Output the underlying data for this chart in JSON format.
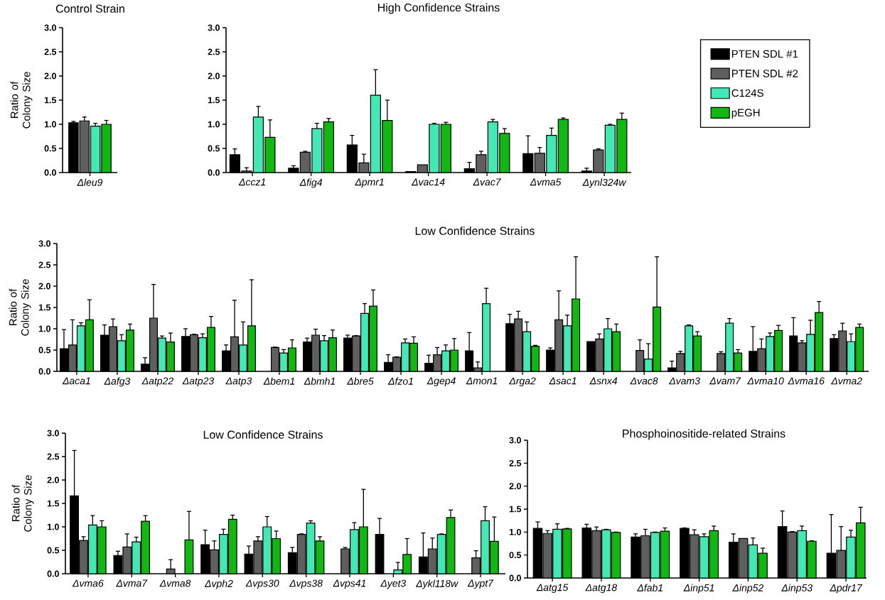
{
  "chart_data": [
    {
      "type": "bar",
      "title": "Control Strain",
      "ylabel": "Ratio of Colony Size",
      "categories": [
        "Δleu9"
      ],
      "ylim": [
        0,
        3
      ],
      "yticks": [
        {
          "value": 0,
          "label": "0.0"
        },
        {
          "value": 0.5,
          "label": "0.5"
        },
        {
          "value": 1,
          "label": "1.0"
        },
        {
          "value": 1.5,
          "label": "1.5"
        },
        {
          "value": 2,
          "label": "2.0"
        },
        {
          "value": 2.5,
          "label": "2.5"
        },
        {
          "value": 3,
          "label": "3.0"
        }
      ],
      "series": [
        {
          "color": "#000000",
          "values": [
            1.03
          ],
          "errors": [
            [
              1.03,
              1.06
            ]
          ]
        },
        {
          "color": "#5f5f5f",
          "values": [
            1.07
          ],
          "errors": [
            [
              1.07,
              1.15
            ]
          ]
        },
        {
          "color": "#44e8b4",
          "values": [
            0.96
          ],
          "errors": [
            [
              0.96,
              1.02
            ]
          ]
        },
        {
          "color": "#12b812",
          "values": [
            1.0
          ],
          "errors": [
            [
              1.0,
              1.08
            ]
          ]
        }
      ]
    },
    {
      "type": "bar",
      "title": "High Confidence Strains",
      "categories": [
        "Δccz1",
        "Δfig4",
        "Δpmr1",
        "Δvac14",
        "Δvac7",
        "Δvma5",
        "Δynl324w"
      ],
      "ylim": [
        0,
        3
      ],
      "yticks": [
        {
          "value": 0,
          "label": "0.0"
        },
        {
          "value": 0.5,
          "label": "0.5"
        },
        {
          "value": 1,
          "label": "1.0"
        },
        {
          "value": 1.5,
          "label": "1.5"
        },
        {
          "value": 2,
          "label": "2.0"
        },
        {
          "value": 2.5,
          "label": "2.5"
        },
        {
          "value": 3,
          "label": "3.0"
        }
      ],
      "legend": "right",
      "series": [
        {
          "name": "PTEN SDL #1",
          "color": "#000000",
          "values": [
            0.37,
            0.09,
            0.57,
            0.02,
            0.08,
            0.39,
            0.03
          ],
          "errors": [
            [
              0.37,
              0.49
            ],
            [
              0.09,
              0.14
            ],
            [
              0.57,
              0.77
            ],
            null,
            [
              0.08,
              0.21
            ],
            [
              0.39,
              0.76
            ],
            [
              0.03,
              0.09
            ]
          ]
        },
        {
          "name": "PTEN SDL #2",
          "color": "#5f5f5f",
          "values": [
            0.03,
            0.42,
            0.2,
            0.16,
            0.37,
            0.4,
            0.47
          ],
          "errors": [
            [
              0.03,
              0.1
            ],
            [
              0.42,
              0.44
            ],
            [
              0.2,
              0.38
            ],
            null,
            [
              0.37,
              0.44
            ],
            [
              0.4,
              0.52
            ],
            [
              0.47,
              0.49
            ]
          ]
        },
        {
          "name": "C124S",
          "color": "#44e8b4",
          "values": [
            1.15,
            0.91,
            1.6,
            1.0,
            1.05,
            0.77,
            0.98
          ],
          "errors": [
            [
              1.15,
              1.37
            ],
            [
              0.91,
              1.02
            ],
            [
              1.6,
              2.13
            ],
            [
              1.0,
              1.02
            ],
            [
              1.05,
              1.1
            ],
            [
              0.77,
              0.92
            ],
            [
              0.98,
              1.0
            ]
          ]
        },
        {
          "name": "pEGH",
          "color": "#12b812",
          "values": [
            0.73,
            1.05,
            1.08,
            1.0,
            0.81,
            1.1,
            1.1
          ],
          "errors": [
            [
              0.73,
              1.09
            ],
            [
              1.05,
              1.12
            ],
            [
              1.08,
              1.5
            ],
            [
              1.0,
              1.04
            ],
            [
              0.81,
              0.91
            ],
            [
              1.1,
              1.13
            ],
            [
              1.1,
              1.23
            ]
          ]
        }
      ]
    },
    {
      "type": "bar",
      "title": "Low Confidence Strains",
      "ylabel": "Ratio of Colony Size",
      "categories": [
        "Δaca1",
        "Δafg3",
        "Δatp22",
        "Δatp23",
        "Δatp3",
        "Δbem1",
        "Δbmh1",
        "Δbre5",
        "Δfzo1",
        "Δgep4",
        "Δmon1",
        "Δrga2",
        "Δsac1",
        "Δsnx4",
        "Δvac8",
        "Δvam3",
        "Δvam7",
        "Δvma10",
        "Δvma16",
        "Δvma2"
      ],
      "ylim": [
        0,
        3
      ],
      "yticks": [
        {
          "value": 0,
          "label": "0.0"
        },
        {
          "value": 0.5,
          "label": "0.5"
        },
        {
          "value": 1,
          "label": "1.0"
        },
        {
          "value": 1.5,
          "label": "1.5"
        },
        {
          "value": 2,
          "label": "2.0"
        },
        {
          "value": 2.5,
          "label": "2.5"
        },
        {
          "value": 3,
          "label": "3.0"
        }
      ],
      "series": [
        {
          "color": "#000000",
          "values": [
            0.53,
            0.85,
            0.17,
            0.82,
            0.48,
            null,
            0.69,
            0.78,
            0.21,
            0.19,
            0.48,
            1.12,
            0.5,
            0.7,
            null,
            0.08,
            null,
            0.47,
            0.83,
            0.77
          ],
          "errors": [
            [
              0.53,
              0.98
            ],
            [
              0.85,
              1.09
            ],
            [
              0.17,
              0.32
            ],
            [
              0.82,
              1.0
            ],
            [
              0.48,
              0.62
            ],
            null,
            [
              0.69,
              0.78
            ],
            [
              0.78,
              0.85
            ],
            [
              0.21,
              0.39
            ],
            [
              0.19,
              0.38
            ],
            [
              0.48,
              0.91
            ],
            [
              1.12,
              1.34
            ],
            [
              0.5,
              0.55
            ],
            null,
            null,
            [
              0.08,
              0.24
            ],
            null,
            [
              0.47,
              1.05
            ],
            [
              0.83,
              1.26
            ],
            [
              0.77,
              0.86
            ]
          ]
        },
        {
          "color": "#5f5f5f",
          "values": [
            0.62,
            1.05,
            1.25,
            0.86,
            0.81,
            0.56,
            0.85,
            0.83,
            0.33,
            0.39,
            0.08,
            1.23,
            1.21,
            0.76,
            0.49,
            0.42,
            0.42,
            0.53,
            0.67,
            0.95
          ],
          "errors": [
            [
              0.62,
              1.21
            ],
            [
              1.05,
              1.23
            ],
            [
              1.25,
              2.04
            ],
            [
              0.86,
              0.87
            ],
            [
              0.81,
              1.67
            ],
            [
              0.56,
              0.57
            ],
            [
              0.85,
              0.99
            ],
            [
              0.83,
              0.84
            ],
            [
              0.33,
              0.34
            ],
            [
              0.39,
              0.56
            ],
            [
              0.08,
              0.22
            ],
            [
              1.23,
              1.41
            ],
            [
              1.21,
              1.89
            ],
            [
              0.76,
              0.88
            ],
            [
              0.49,
              0.74
            ],
            [
              0.42,
              0.47
            ],
            [
              0.42,
              0.46
            ],
            [
              0.53,
              0.76
            ],
            [
              0.67,
              0.72
            ],
            [
              0.95,
              1.13
            ]
          ]
        },
        {
          "color": "#44e8b4",
          "values": [
            1.07,
            0.72,
            0.78,
            0.79,
            0.62,
            0.43,
            0.72,
            1.36,
            0.67,
            0.48,
            1.59,
            0.93,
            1.07,
            1.0,
            0.29,
            1.07,
            1.13,
            0.82,
            0.87,
            0.7
          ],
          "errors": [
            [
              1.07,
              1.14
            ],
            [
              0.72,
              0.86
            ],
            [
              0.78,
              0.83
            ],
            [
              0.79,
              0.88
            ],
            [
              0.62,
              1.16
            ],
            [
              0.43,
              0.51
            ],
            [
              0.72,
              0.84
            ],
            [
              1.36,
              1.59
            ],
            [
              0.67,
              0.76
            ],
            [
              0.48,
              0.62
            ],
            [
              1.59,
              1.95
            ],
            [
              0.93,
              1.16
            ],
            [
              1.07,
              1.32
            ],
            [
              1.0,
              1.24
            ],
            [
              0.29,
              0.65
            ],
            [
              1.07,
              1.09
            ],
            [
              1.13,
              1.24
            ],
            [
              0.82,
              0.9
            ],
            [
              0.87,
              1.2
            ],
            [
              0.7,
              0.88
            ]
          ]
        },
        {
          "color": "#12b812",
          "values": [
            1.21,
            0.97,
            0.69,
            1.03,
            1.07,
            0.55,
            0.79,
            1.53,
            0.66,
            0.5,
            null,
            0.59,
            1.7,
            0.93,
            1.51,
            0.83,
            0.43,
            0.96,
            1.38,
            1.03
          ],
          "errors": [
            [
              1.21,
              1.68
            ],
            [
              0.97,
              1.11
            ],
            [
              0.69,
              0.9
            ],
            [
              1.03,
              1.29
            ],
            [
              1.07,
              2.15
            ],
            [
              0.55,
              0.74
            ],
            [
              0.79,
              0.97
            ],
            [
              1.53,
              1.91
            ],
            [
              0.66,
              0.81
            ],
            [
              0.5,
              0.77
            ],
            null,
            [
              0.59,
              0.61
            ],
            [
              1.7,
              2.69
            ],
            [
              0.93,
              1.11
            ],
            [
              1.51,
              2.69
            ],
            [
              0.83,
              0.93
            ],
            [
              0.43,
              0.51
            ],
            [
              0.96,
              1.08
            ],
            [
              1.38,
              1.64
            ],
            [
              1.03,
              1.11
            ]
          ]
        }
      ]
    },
    {
      "type": "bar",
      "title": "Low Confidence Strains",
      "ylabel": "Ratio of Colony Size",
      "categories": [
        "Δvma6",
        "Δvma7",
        "Δvma8",
        "Δvph2",
        "Δvps30",
        "Δvps38",
        "Δvps41",
        "Δyet3",
        "Δykl118w",
        "Δypt7"
      ],
      "ylim": [
        0,
        3
      ],
      "yticks": [
        {
          "value": 0,
          "label": "0.0"
        },
        {
          "value": 0.5,
          "label": "0.5"
        },
        {
          "value": 1,
          "label": "1.0"
        },
        {
          "value": 1.5,
          "label": "1.5"
        },
        {
          "value": 2,
          "label": "2.0"
        },
        {
          "value": 2.5,
          "label": "2.5"
        },
        {
          "value": 3,
          "label": "3.0"
        }
      ],
      "series": [
        {
          "color": "#000000",
          "values": [
            1.66,
            0.39,
            null,
            0.62,
            0.42,
            0.45,
            null,
            0.84,
            0.36,
            null
          ],
          "errors": [
            [
              1.66,
              2.63
            ],
            [
              0.39,
              0.48
            ],
            null,
            [
              0.62,
              0.93
            ],
            [
              0.42,
              0.59
            ],
            [
              0.45,
              0.56
            ],
            null,
            [
              0.84,
              1.18
            ],
            [
              0.36,
              0.87
            ],
            null
          ]
        },
        {
          "color": "#5f5f5f",
          "values": [
            0.71,
            0.57,
            0.1,
            0.51,
            0.7,
            0.84,
            0.53,
            null,
            0.53,
            0.34
          ],
          "errors": [
            [
              0.71,
              0.79
            ],
            [
              0.57,
              0.85
            ],
            [
              0.1,
              0.3
            ],
            [
              0.51,
              0.7
            ],
            [
              0.7,
              0.79
            ],
            [
              0.84,
              0.85
            ],
            [
              0.53,
              0.56
            ],
            null,
            [
              0.53,
              0.76
            ],
            [
              0.34,
              0.49
            ]
          ]
        },
        {
          "color": "#44e8b4",
          "values": [
            1.04,
            0.68,
            null,
            0.84,
            1.0,
            1.08,
            0.94,
            0.08,
            0.84,
            1.13
          ],
          "errors": [
            [
              1.04,
              1.24
            ],
            [
              0.68,
              0.78
            ],
            null,
            [
              0.84,
              0.95
            ],
            [
              1.0,
              1.22
            ],
            [
              1.08,
              1.13
            ],
            [
              0.94,
              1.09
            ],
            [
              0.08,
              0.24
            ],
            [
              0.84,
              0.85
            ],
            [
              1.13,
              1.43
            ]
          ]
        },
        {
          "color": "#12b812",
          "values": [
            1.0,
            1.12,
            0.72,
            1.16,
            0.75,
            0.7,
            1.0,
            0.41,
            1.2,
            0.69
          ],
          "errors": [
            [
              1.0,
              1.13
            ],
            [
              1.12,
              1.24
            ],
            [
              0.72,
              1.33
            ],
            [
              1.16,
              1.25
            ],
            [
              0.75,
              0.91
            ],
            [
              0.7,
              0.79
            ],
            [
              1.0,
              1.8
            ],
            [
              0.41,
              0.75
            ],
            [
              1.2,
              1.36
            ],
            [
              0.69,
              1.21
            ]
          ]
        }
      ]
    },
    {
      "type": "bar",
      "title": "Phosphoinositide-related Strains",
      "categories": [
        "Δatg15",
        "Δatg18",
        "Δfab1",
        "Δinp51",
        "Δinp52",
        "Δinp53",
        "Δpdr17"
      ],
      "ylim": [
        0,
        3
      ],
      "yticks": [
        {
          "value": 0,
          "label": "0.0"
        },
        {
          "value": 0.5,
          "label": "0.5"
        },
        {
          "value": 1,
          "label": "1.0"
        },
        {
          "value": 1.5,
          "label": "1.5"
        },
        {
          "value": 2,
          "label": "2.0"
        },
        {
          "value": 2.5,
          "label": "2.5"
        },
        {
          "value": 3,
          "label": "3.0"
        }
      ],
      "series": [
        {
          "color": "#000000",
          "values": [
            1.08,
            1.09,
            0.89,
            1.08,
            0.78,
            1.12,
            0.54
          ],
          "errors": [
            [
              1.08,
              1.22
            ],
            [
              1.09,
              1.17
            ],
            [
              0.89,
              0.96
            ],
            [
              1.08,
              1.09
            ],
            [
              0.78,
              0.96
            ],
            [
              1.12,
              1.46
            ],
            [
              0.54,
              1.38
            ]
          ]
        },
        {
          "color": "#5f5f5f",
          "values": [
            0.97,
            1.03,
            0.92,
            0.94,
            0.86,
            1.0,
            0.6
          ],
          "errors": [
            [
              0.97,
              1.03
            ],
            [
              1.03,
              1.11
            ],
            [
              0.92,
              1.06
            ],
            [
              0.94,
              1.05
            ],
            null,
            [
              1.0,
              1.01
            ],
            [
              0.6,
              1.12
            ]
          ]
        },
        {
          "color": "#44e8b4",
          "values": [
            1.06,
            1.05,
            0.99,
            0.9,
            0.72,
            1.03,
            0.89
          ],
          "errors": [
            [
              1.06,
              1.18
            ],
            [
              1.05,
              1.06
            ],
            [
              0.99,
              1.0
            ],
            [
              0.9,
              0.96
            ],
            [
              0.72,
              0.87
            ],
            [
              1.03,
              1.13
            ],
            [
              0.89,
              1.04
            ]
          ]
        },
        {
          "color": "#12b812",
          "values": [
            1.07,
            0.99,
            1.02,
            1.03,
            0.54,
            0.8,
            1.2
          ],
          "errors": [
            [
              1.07,
              1.08
            ],
            [
              0.99,
              1.0
            ],
            [
              1.02,
              1.09
            ],
            [
              1.03,
              1.13
            ],
            [
              0.54,
              0.65
            ],
            [
              0.8,
              0.81
            ],
            [
              1.2,
              1.54
            ]
          ]
        }
      ]
    }
  ]
}
